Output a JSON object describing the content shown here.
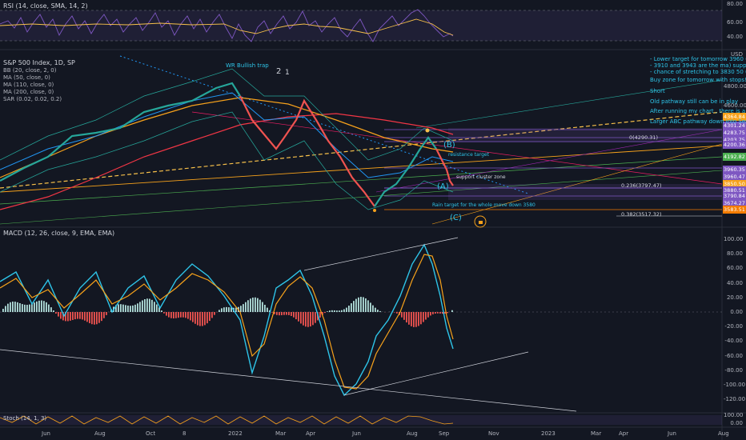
{
  "rsi": {
    "label": "RSI (14, close, SMA, 14, 2)",
    "axis": [
      "80.00",
      "60.00",
      "40.00"
    ]
  },
  "main": {
    "title": "S&P 500 Index, 1D, SP",
    "indicators": [
      "BB (20, close, 2, 0)",
      "MA (50, close, 0)",
      "MA (110, close, 0)",
      "MA (200, close, 0)",
      "SAR (0.02, 0.02, 0.2)"
    ],
    "currency": "USD",
    "axis": [
      "4800.00",
      "4600.00"
    ],
    "price_tags": [
      {
        "v": "4364.84",
        "c": "#f7a21b"
      },
      {
        "v": "4301.24",
        "c": "#7e57c2"
      },
      {
        "v": "4283.75",
        "c": "#7e57c2"
      },
      {
        "v": "4203.75",
        "c": "#7e57c2"
      },
      {
        "v": "4200.36",
        "c": "#7e57c2"
      },
      {
        "v": "4192.82",
        "c": "#4caf50"
      },
      {
        "v": "3960.35",
        "c": "#7e57c2"
      },
      {
        "v": "3960.47",
        "c": "#7e57c2"
      },
      {
        "v": "3850.50",
        "c": "#f7a21b"
      },
      {
        "v": "3880.51",
        "c": "#7e57c2"
      },
      {
        "v": "3790.84",
        "c": "#7e57c2"
      },
      {
        "v": "3674.27",
        "c": "#7e57c2"
      },
      {
        "v": "3583.51",
        "c": "#f57c00"
      }
    ],
    "notes": [
      "- Lower target for tomorrow 3960 (if",
      "- 3910 and 3943 are the ma) suppor",
      "- chance of stretching to 3830 50 (",
      "Buy zone for tomorrow with stops!",
      "Short",
      "Old pathway still can be in play",
      "After running my chart , there is a",
      "Larger ABC pathway down into Sep"
    ],
    "annotations": {
      "wr": "WR Bullish trap",
      "two": "2",
      "one": "1",
      "resistance": "resistance target",
      "support": "support cluster zone",
      "rain": "Rain target for the whole move down 3580",
      "fib1": "0(4290.31)",
      "fib2": "0.236(3797.47)",
      "fib3": "0.382(3517.32)"
    },
    "waves": [
      "(B)",
      "(A)",
      "(C)"
    ]
  },
  "macd": {
    "label": "MACD (12, 26, close, 9, EMA, EMA)",
    "axis": [
      "100.00",
      "80.00",
      "60.00",
      "40.00",
      "20.00",
      "0.00",
      "-20.00",
      "-40.00",
      "-60.00",
      "-80.00",
      "-100.00",
      "-120.00"
    ]
  },
  "stoch": {
    "label": "Stoch (14, 1, 3)",
    "axis": [
      "100.00",
      "0.00"
    ]
  },
  "time_axis": [
    "Jun",
    "Aug",
    "Oct",
    "8",
    "2022",
    "Mar",
    "Apr",
    "Jun",
    "Aug",
    "Sep",
    "Nov",
    "2023",
    "Mar",
    "Apr",
    "Jun",
    "Aug"
  ]
}
